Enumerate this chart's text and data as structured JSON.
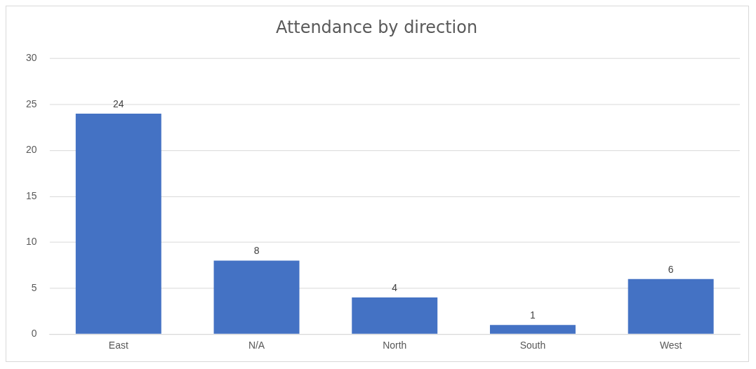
{
  "chart_data": {
    "type": "bar",
    "title": "Attendance by direction",
    "categories": [
      "East",
      "N/A",
      "North",
      "South",
      "West"
    ],
    "values": [
      24,
      8,
      4,
      1,
      6
    ],
    "color": "#4472c4",
    "ylim": [
      0,
      30
    ],
    "yticks": [
      0,
      5,
      10,
      15,
      20,
      25,
      30
    ],
    "grid": "y",
    "legend": false,
    "data_labels": true
  }
}
